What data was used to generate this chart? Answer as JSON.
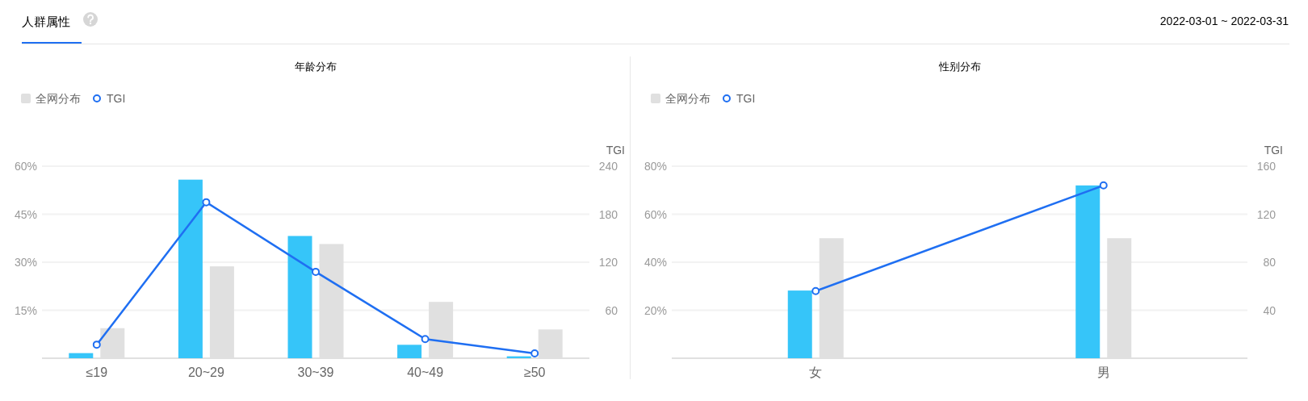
{
  "chart_data": [
    {
      "type": "other",
      "title": "人群属性",
      "annotations": [
        "2022-03-01 ~ 2022-03-31"
      ]
    },
    {
      "type": "bar",
      "title": "年龄分布",
      "categories": [
        "≤19",
        "20~29",
        "30~39",
        "40~49",
        "≥50"
      ],
      "series": [
        {
          "color": "#36c5f9",
          "values": [
            1.6,
            55.8,
            38.2,
            4.2,
            0.6
          ]
        },
        {
          "name": "全网分布",
          "color": "#e0e0e0",
          "values": [
            9.4,
            28.7,
            35.7,
            17.6,
            9.0
          ]
        },
        {
          "name": "TGI",
          "type": "line",
          "axis": "y2",
          "color": "#1f6ff2",
          "values": [
            17,
            195,
            108,
            24,
            6
          ]
        }
      ],
      "ylim": [
        0,
        60
      ],
      "yticks": [
        {
          "value": 15,
          "label": "15%"
        },
        {
          "value": 30,
          "label": "30%"
        },
        {
          "value": 45,
          "label": "45%"
        },
        {
          "value": 60,
          "label": "60%"
        }
      ],
      "y2label": "TGI",
      "y2lim": [
        0,
        240
      ],
      "y2ticks": [
        60,
        120,
        180,
        240
      ],
      "grid": "y",
      "legend": "top left",
      "marker": "circle"
    },
    {
      "type": "bar",
      "title": "性别分布",
      "categories": [
        "女",
        "男"
      ],
      "series": [
        {
          "color": "#36c5f9",
          "values": [
            28.2,
            72.0
          ]
        },
        {
          "name": "全网分布",
          "color": "#e0e0e0",
          "values": [
            50.0,
            50.0
          ]
        },
        {
          "name": "TGI",
          "type": "line",
          "axis": "y2",
          "color": "#1f6ff2",
          "values": [
            56,
            144
          ]
        }
      ],
      "ylim": [
        0,
        80
      ],
      "yticks": [
        {
          "value": 20,
          "label": "20%"
        },
        {
          "value": 40,
          "label": "40%"
        },
        {
          "value": 60,
          "label": "60%"
        },
        {
          "value": 80,
          "label": "80%"
        }
      ],
      "y2label": "TGI",
      "y2lim": [
        0,
        160
      ],
      "y2ticks": [
        40,
        80,
        120,
        160
      ],
      "grid": "y",
      "legend": "top left",
      "marker": "circle"
    }
  ]
}
